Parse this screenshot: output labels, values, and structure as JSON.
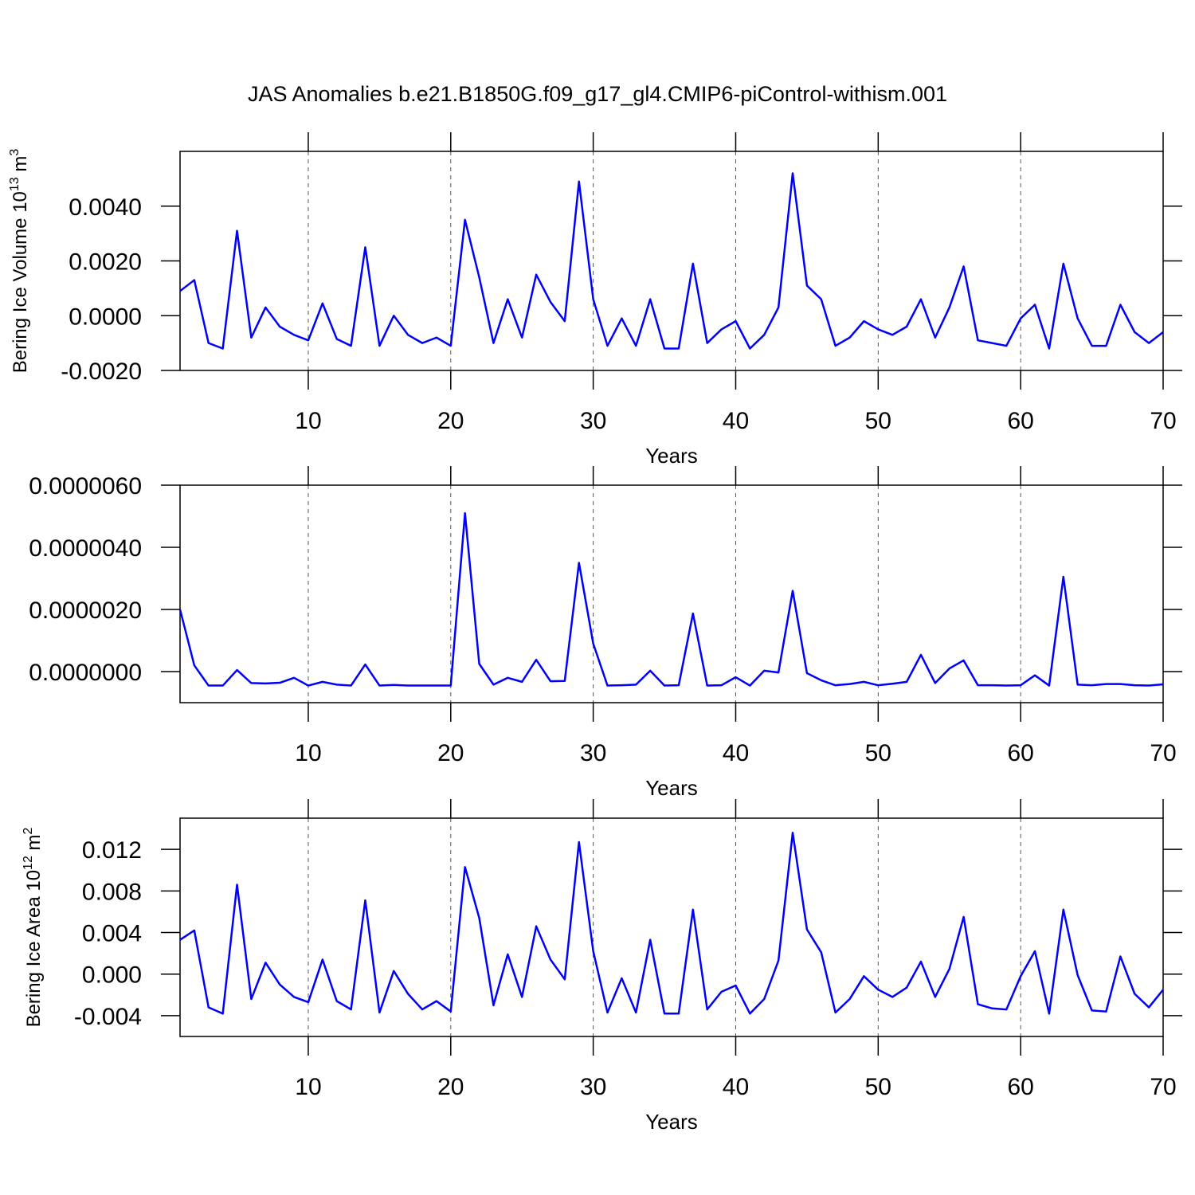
{
  "chart_data": [
    {
      "type": "line",
      "title": "JAS Anomalies b.e21.B1850G.f09_g17_gl4.CMIP6-piControl-withism.001",
      "ylabel": [
        "Bering Ice Volume 10",
        "13",
        " m",
        "3"
      ],
      "xlabel": "Years",
      "x": [
        1,
        2,
        3,
        4,
        5,
        6,
        7,
        8,
        9,
        10,
        11,
        12,
        13,
        14,
        15,
        16,
        17,
        18,
        19,
        20,
        21,
        22,
        23,
        24,
        25,
        26,
        27,
        28,
        29,
        30,
        31,
        32,
        33,
        34,
        35,
        36,
        37,
        38,
        39,
        40,
        41,
        42,
        43,
        44,
        45,
        46,
        47,
        48,
        49,
        50,
        51,
        52,
        53,
        54,
        55,
        56,
        57,
        58,
        59,
        60,
        61,
        62,
        63,
        64,
        65,
        66,
        67,
        68,
        69,
        70
      ],
      "series": [
        {
          "color": "#0000ff",
          "values": [
            0.0009,
            0.0013,
            -0.001,
            -0.0012,
            0.0031,
            -0.0008,
            0.0003,
            -0.0004,
            -0.0007,
            -0.0009,
            0.00045,
            -0.00085,
            -0.0011,
            0.0025,
            -0.0011,
            0.0,
            -0.0007,
            -0.001,
            -0.0008,
            -0.0011,
            0.0035,
            0.0014,
            -0.001,
            0.0006,
            -0.0008,
            0.0015,
            0.0005,
            -0.0002,
            0.0049,
            0.0006,
            -0.0011,
            -0.0001,
            -0.0011,
            0.0006,
            -0.0012,
            -0.0012,
            0.0019,
            -0.001,
            -0.0005,
            -0.0002,
            -0.0012,
            -0.0007,
            0.0003,
            0.0052,
            0.0011,
            0.0006,
            -0.0011,
            -0.0008,
            -0.0002,
            -0.0005,
            -0.0007,
            -0.0004,
            0.0006,
            -0.0008,
            0.0003,
            0.0018,
            -0.0009,
            -0.001,
            -0.0011,
            -0.0001,
            0.0004,
            -0.0012,
            0.0019,
            -0.0001,
            -0.0011,
            -0.0011,
            0.0004,
            -0.0006,
            -0.001,
            -0.0006
          ]
        }
      ],
      "xlim": [
        1,
        70
      ],
      "xticks": [
        10,
        20,
        30,
        40,
        50,
        60,
        70
      ],
      "ylim": [
        -0.002,
        0.006
      ],
      "yticks": [
        {
          "value": -0.002,
          "label": "-0.0020"
        },
        {
          "value": 0,
          "label": "0.0000"
        },
        {
          "value": 0.002,
          "label": "0.0020"
        },
        {
          "value": 0.004,
          "label": "0.0040"
        }
      ],
      "xgrid": true
    },
    {
      "type": "line",
      "xlabel": "Years",
      "x": [
        1,
        2,
        3,
        4,
        5,
        6,
        7,
        8,
        9,
        10,
        11,
        12,
        13,
        14,
        15,
        16,
        17,
        18,
        19,
        20,
        21,
        22,
        23,
        24,
        25,
        26,
        27,
        28,
        29,
        30,
        31,
        32,
        33,
        34,
        35,
        36,
        37,
        38,
        39,
        40,
        41,
        42,
        43,
        44,
        45,
        46,
        47,
        48,
        49,
        50,
        51,
        52,
        53,
        54,
        55,
        56,
        57,
        58,
        59,
        60,
        61,
        62,
        63,
        64,
        65,
        66,
        67,
        68,
        69,
        70
      ],
      "series": [
        {
          "color": "#0000ff",
          "values": [
            2e-06,
            2e-07,
            -4.5e-07,
            -4.5e-07,
            5e-08,
            -3.7e-07,
            -3.8e-07,
            -3.6e-07,
            -2e-07,
            -4.5e-07,
            -3.3e-07,
            -4.2e-07,
            -4.5e-07,
            2.3e-07,
            -4.5e-07,
            -4.3e-07,
            -4.5e-07,
            -4.5e-07,
            -4.5e-07,
            -4.5e-07,
            5.1e-06,
            2.5e-07,
            -4.2e-07,
            -2e-07,
            -3.3e-07,
            3.8e-07,
            -3.1e-07,
            -3e-07,
            3.5e-06,
            9e-07,
            -4.5e-07,
            -4.4e-07,
            -4.2e-07,
            3e-08,
            -4.5e-07,
            -4.4e-07,
            1.87e-06,
            -4.5e-07,
            -4.4e-07,
            -1.8e-07,
            -4.5e-07,
            3e-08,
            -3e-08,
            2.6e-06,
            -5e-08,
            -2.8e-07,
            -4.4e-07,
            -4e-07,
            -3.3e-07,
            -4.4e-07,
            -3.9e-07,
            -3.3e-07,
            5.4e-07,
            -3.7e-07,
            1e-07,
            3.6e-07,
            -4.4e-07,
            -4.4e-07,
            -4.5e-07,
            -4.4e-07,
            -1.2e-07,
            -4.5e-07,
            3.05e-06,
            -4.2e-07,
            -4.4e-07,
            -4e-07,
            -4e-07,
            -4.4e-07,
            -4.5e-07,
            -4.1e-07
          ]
        }
      ],
      "xlim": [
        1,
        70
      ],
      "xticks": [
        10,
        20,
        30,
        40,
        50,
        60,
        70
      ],
      "ylim": [
        -1e-06,
        6e-06
      ],
      "yticks": [
        {
          "value": 0,
          "label": "0.0000000"
        },
        {
          "value": 2e-06,
          "label": "0.0000020"
        },
        {
          "value": 4e-06,
          "label": "0.0000040"
        },
        {
          "value": 6e-06,
          "label": "0.0000060"
        }
      ],
      "xgrid": true
    },
    {
      "type": "line",
      "ylabel": [
        "Bering Ice Area 10",
        "12",
        " m",
        "2"
      ],
      "xlabel": "Years",
      "x": [
        1,
        2,
        3,
        4,
        5,
        6,
        7,
        8,
        9,
        10,
        11,
        12,
        13,
        14,
        15,
        16,
        17,
        18,
        19,
        20,
        21,
        22,
        23,
        24,
        25,
        26,
        27,
        28,
        29,
        30,
        31,
        32,
        33,
        34,
        35,
        36,
        37,
        38,
        39,
        40,
        41,
        42,
        43,
        44,
        45,
        46,
        47,
        48,
        49,
        50,
        51,
        52,
        53,
        54,
        55,
        56,
        57,
        58,
        59,
        60,
        61,
        62,
        63,
        64,
        65,
        66,
        67,
        68,
        69,
        70
      ],
      "series": [
        {
          "color": "#0000ff",
          "values": [
            0.0033,
            0.0042,
            -0.0032,
            -0.0038,
            0.0086,
            -0.0024,
            0.0011,
            -0.001,
            -0.0022,
            -0.0027,
            0.0014,
            -0.0026,
            -0.0034,
            0.0071,
            -0.0037,
            0.0003,
            -0.0019,
            -0.0034,
            -0.0026,
            -0.0036,
            0.0103,
            0.0054,
            -0.003,
            0.0019,
            -0.0022,
            0.0046,
            0.0014,
            -0.0005,
            0.0127,
            0.0022,
            -0.0037,
            -0.0004,
            -0.0037,
            0.0033,
            -0.0038,
            -0.0038,
            0.0062,
            -0.0034,
            -0.0017,
            -0.0011,
            -0.0038,
            -0.0024,
            0.0013,
            0.0136,
            0.0043,
            0.0021,
            -0.0037,
            -0.0024,
            -0.0002,
            -0.0015,
            -0.0022,
            -0.0013,
            0.0012,
            -0.0022,
            0.0005,
            0.0055,
            -0.0029,
            -0.0033,
            -0.0034,
            -0.0002,
            0.0022,
            -0.0038,
            0.0062,
            -0.0001,
            -0.0035,
            -0.0036,
            0.0017,
            -0.0019,
            -0.0032,
            -0.0015
          ]
        }
      ],
      "xlim": [
        1,
        70
      ],
      "xticks": [
        10,
        20,
        30,
        40,
        50,
        60,
        70
      ],
      "ylim": [
        -0.006,
        0.015
      ],
      "yticks": [
        {
          "value": -0.004,
          "label": "-0.004"
        },
        {
          "value": 0,
          "label": "0.000"
        },
        {
          "value": 0.004,
          "label": "0.004"
        },
        {
          "value": 0.008,
          "label": "0.008"
        },
        {
          "value": 0.012,
          "label": "0.012"
        }
      ],
      "xgrid": true
    }
  ]
}
